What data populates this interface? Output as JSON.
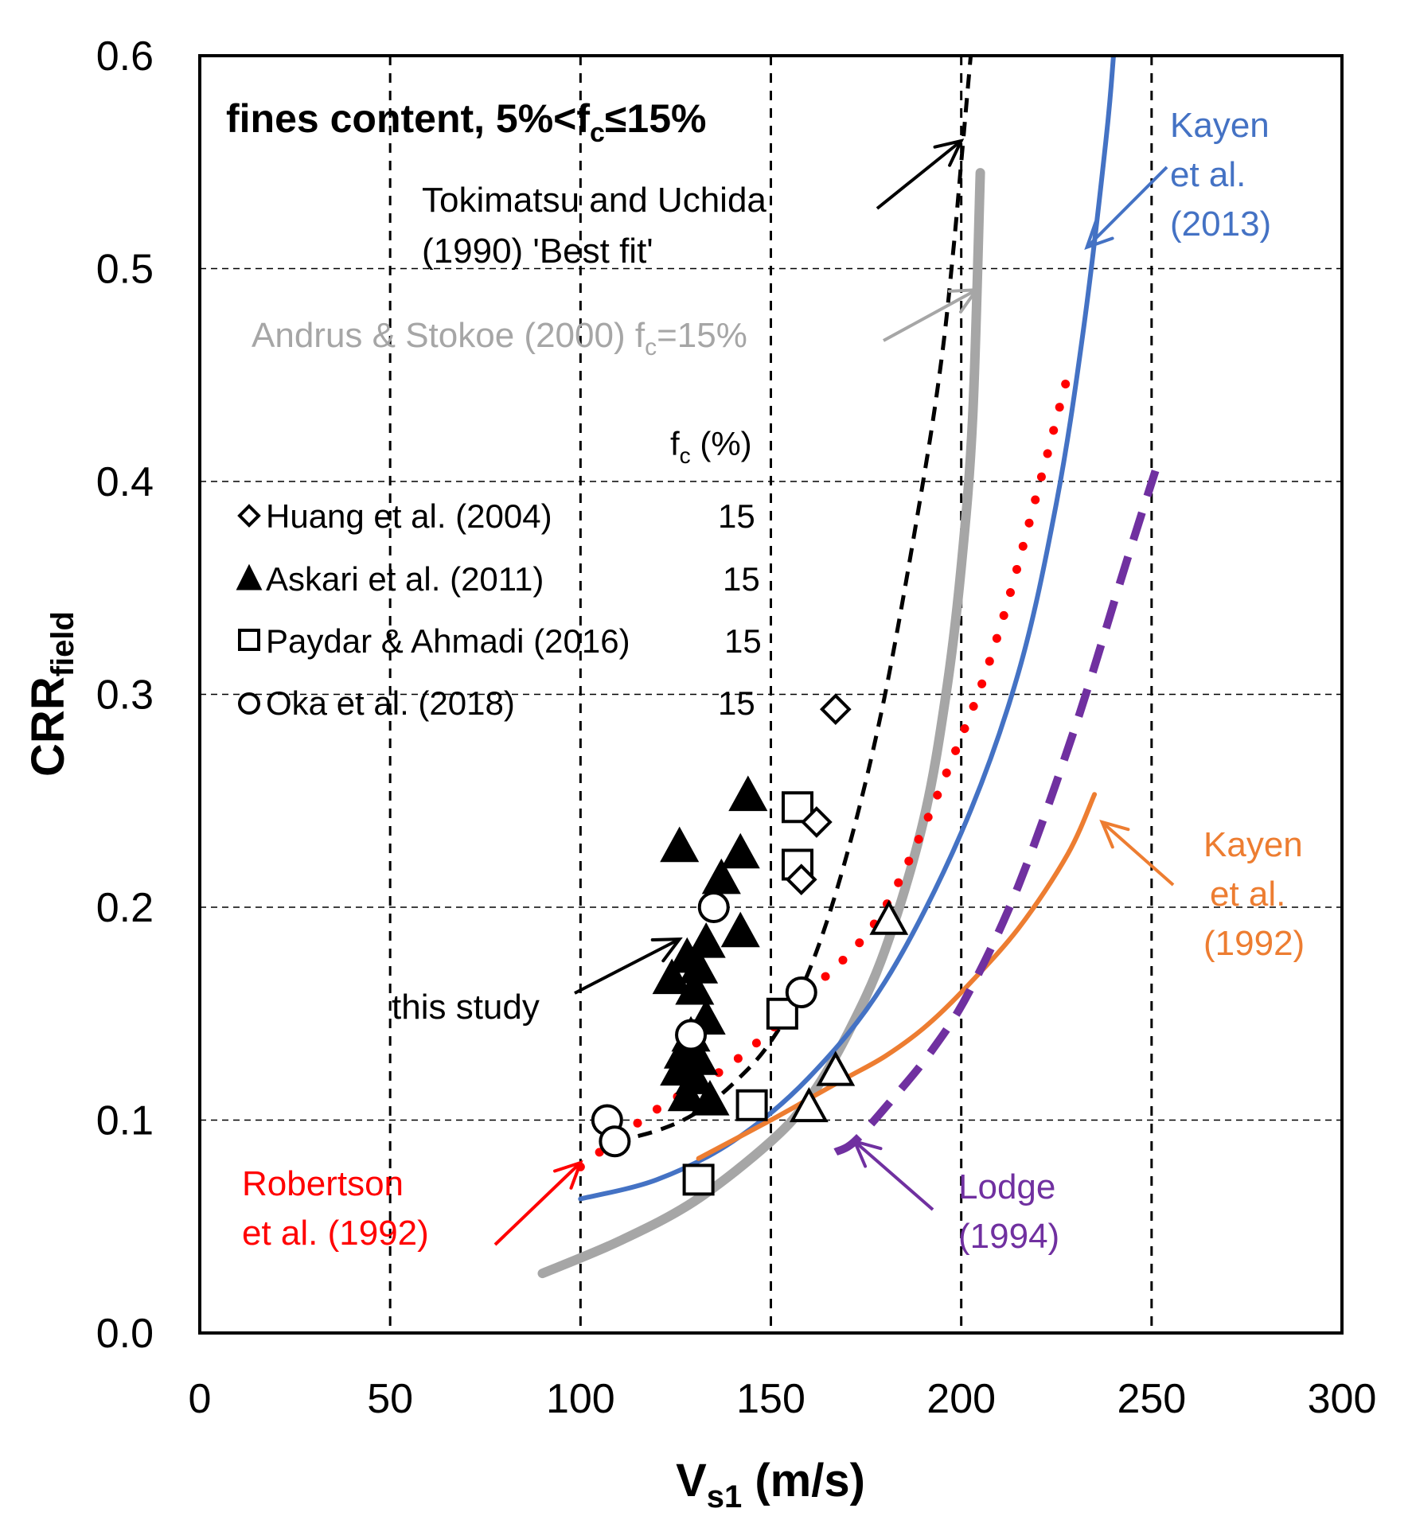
{
  "chart_data": {
    "type": "line+scatter",
    "title": "fines content, 5%<fc≤15%",
    "title_parts": {
      "pre": "fines content, 5%<f",
      "sub": "c",
      "post": "≤15%"
    },
    "xlabel": {
      "main": "V",
      "sub": "s1",
      "rest": " (m/s)"
    },
    "ylabel": {
      "main": "CRR",
      "sub": "field"
    },
    "xlim": [
      0,
      300
    ],
    "ylim": [
      0,
      0.6
    ],
    "x_ticks": [
      0,
      50,
      100,
      150,
      200,
      250,
      300
    ],
    "x_tick_labels": [
      "0",
      "50",
      "100",
      "150",
      "200",
      "250",
      "300"
    ],
    "y_ticks": [
      0,
      0.1,
      0.2,
      0.3,
      0.4,
      0.5,
      0.6
    ],
    "y_tick_labels": [
      "0.0",
      "0.1",
      "0.2",
      "0.3",
      "0.4",
      "0.5",
      "0.6"
    ],
    "grid": {
      "vertical_at": [
        50,
        100,
        150,
        200,
        250
      ],
      "horizontal_at": [
        0.1,
        0.2,
        0.3,
        0.4,
        0.5
      ]
    },
    "curves": [
      {
        "name": "Tokimatsu and Uchida (1990) 'Best fit'",
        "color": "#000000",
        "style": "dashed",
        "x": [
          109,
          120,
          130,
          140,
          150,
          160,
          170,
          180,
          190,
          195,
          198,
          200,
          202,
          203
        ],
        "y": [
          0.09,
          0.095,
          0.103,
          0.117,
          0.137,
          0.17,
          0.225,
          0.3,
          0.4,
          0.46,
          0.51,
          0.55,
          0.59,
          0.61
        ]
      },
      {
        "name": "Andrus & Stokoe (2000) fc=15%",
        "color": "#a6a6a6",
        "style": "solid",
        "x": [
          90,
          110,
          130,
          150,
          160,
          170,
          180,
          190,
          196,
          200,
          203,
          205
        ],
        "y": [
          0.028,
          0.043,
          0.062,
          0.09,
          0.11,
          0.14,
          0.18,
          0.24,
          0.3,
          0.36,
          0.43,
          0.545
        ]
      },
      {
        "name": "Robertson et al. (1992)",
        "color": "#ff0000",
        "style": "dotted",
        "x": [
          100,
          120,
          140,
          160,
          180,
          200,
          210,
          220,
          228
        ],
        "y": [
          0.078,
          0.105,
          0.127,
          0.16,
          0.2,
          0.28,
          0.33,
          0.395,
          0.45
        ]
      },
      {
        "name": "Kayen et al. (2013)",
        "color": "#4472c4",
        "style": "solid",
        "x": [
          100,
          120,
          140,
          160,
          180,
          200,
          215,
          225,
          232,
          238,
          240
        ],
        "y": [
          0.063,
          0.072,
          0.09,
          0.12,
          0.165,
          0.235,
          0.31,
          0.39,
          0.47,
          0.56,
          0.6
        ]
      },
      {
        "name": "Kayen et al. (1992)",
        "color": "#ed7d31",
        "style": "solid",
        "x": [
          131,
          150,
          160,
          170,
          180,
          190,
          200,
          215,
          228,
          235
        ],
        "y": [
          0.082,
          0.1,
          0.11,
          0.12,
          0.13,
          0.143,
          0.16,
          0.19,
          0.225,
          0.253
        ]
      },
      {
        "name": "Lodge (1994)",
        "color": "#7030a0",
        "style": "dashed",
        "x": [
          167,
          172,
          182,
          192,
          202,
          215,
          230,
          243,
          251
        ],
        "y": [
          0.085,
          0.09,
          0.11,
          0.132,
          0.16,
          0.21,
          0.285,
          0.36,
          0.405
        ]
      }
    ],
    "scatter_series": [
      {
        "name": "Huang et al. (2004)",
        "marker": "diamond-open",
        "fc": "15",
        "points": [
          [
            167,
            0.293
          ],
          [
            162,
            0.24
          ],
          [
            158,
            0.213
          ]
        ]
      },
      {
        "name": "Askari et al. (2011)",
        "marker": "triangle-filled",
        "fc": "15",
        "points": [
          [
            144,
            0.251
          ],
          [
            126,
            0.227
          ],
          [
            142,
            0.224
          ],
          [
            137,
            0.212
          ],
          [
            142,
            0.187
          ],
          [
            133,
            0.182
          ],
          [
            128,
            0.175
          ],
          [
            131,
            0.17
          ],
          [
            124,
            0.165
          ],
          [
            130,
            0.16
          ],
          [
            133,
            0.146
          ],
          [
            129,
            0.138
          ],
          [
            127,
            0.13
          ],
          [
            131,
            0.127
          ],
          [
            126,
            0.122
          ],
          [
            130,
            0.118
          ],
          [
            128,
            0.11
          ],
          [
            134,
            0.108
          ]
        ]
      },
      {
        "name": "Askari et al. (2011) open",
        "marker": "triangle-open",
        "fc": "",
        "points": [
          [
            181,
            0.193
          ],
          [
            167,
            0.122
          ],
          [
            160,
            0.105
          ]
        ]
      },
      {
        "name": "Paydar & Ahmadi (2016)",
        "marker": "square-open",
        "fc": "15",
        "points": [
          [
            157,
            0.247
          ],
          [
            157,
            0.22
          ],
          [
            153,
            0.15
          ],
          [
            145,
            0.107
          ],
          [
            131,
            0.072
          ]
        ]
      },
      {
        "name": "Oka et al. (2018)",
        "marker": "circle-open",
        "fc": "15",
        "points": [
          [
            135,
            0.2
          ],
          [
            158,
            0.16
          ],
          [
            129,
            0.14
          ],
          [
            107,
            0.1
          ],
          [
            109,
            0.09
          ]
        ]
      }
    ],
    "legend": {
      "header": {
        "main": "f",
        "sub": "c",
        "rest": " (%)"
      },
      "position": "upper-left",
      "entries": [
        {
          "label": "Huang et al. (2004)",
          "marker": "diamond-open",
          "fc": "15"
        },
        {
          "label": "Askari et al. (2011)",
          "marker": "triangle-filled",
          "fc": "15"
        },
        {
          "label": "Paydar & Ahmadi (2016)",
          "marker": "square-open",
          "fc": "15"
        },
        {
          "label": "Oka et al. (2018)",
          "marker": "circle-open",
          "fc": "15"
        }
      ]
    },
    "annotations": [
      {
        "id": "tokimatsu",
        "lines": [
          "Tokimatsu  and Uchida",
          "(1990) 'Best fit'"
        ],
        "color": "#000000",
        "arrow_to": [
          200,
          0.56
        ]
      },
      {
        "id": "andrus",
        "parts": {
          "pre": "Andrus  & Stokoe (2000) f",
          "sub": "c",
          "post": "=15%"
        },
        "color": "#a6a6a6",
        "arrow_to": [
          204,
          0.49
        ]
      },
      {
        "id": "kayen2013",
        "lines": [
          "Kayen",
          "et al.",
          "(2013)"
        ],
        "color": "#4472c4",
        "arrow_to": [
          233,
          0.51
        ]
      },
      {
        "id": "kayen1992",
        "lines": [
          "Kayen",
          "et al.",
          "(1992)"
        ],
        "color": "#ed7d31",
        "arrow_to": [
          237,
          0.24
        ]
      },
      {
        "id": "lodge",
        "lines": [
          "Lodge",
          "(1994)"
        ],
        "color": "#7030a0",
        "arrow_to": [
          172,
          0.09
        ]
      },
      {
        "id": "robertson",
        "lines": [
          "Robertson",
          "et al. (1992)"
        ],
        "color": "#ff0000",
        "arrow_to": [
          100,
          0.08
        ]
      },
      {
        "id": "thisstudy",
        "lines": [
          "this study"
        ],
        "color": "#000000",
        "arrow_to": [
          126,
          0.185
        ]
      }
    ]
  }
}
